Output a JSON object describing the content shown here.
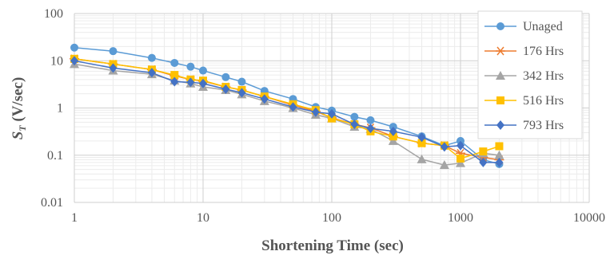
{
  "chart_data": {
    "type": "line",
    "title": "",
    "xlabel": "Shortening Time (sec)",
    "ylabel_main": "S",
    "ylabel_sub": "T",
    "ylabel_rest": " (V/sec)",
    "x_scale": "log",
    "y_scale": "log",
    "xlim": [
      1,
      10000
    ],
    "ylim": [
      0.01,
      100
    ],
    "x_ticks": [
      1,
      10,
      100,
      1000,
      10000
    ],
    "x_tick_labels": [
      "1",
      "10",
      "100",
      "1000",
      "10000"
    ],
    "y_ticks": [
      0.01,
      0.1,
      1,
      10,
      100
    ],
    "y_tick_labels": [
      "0.01",
      "0.1",
      "1",
      "10",
      "100"
    ],
    "grid": "major and minor",
    "legend_position": "right",
    "series": [
      {
        "name": "Unaged",
        "color": "#5b9bd5",
        "marker": "circle",
        "x": [
          1,
          2,
          4,
          6,
          8,
          10,
          15,
          20,
          30,
          50,
          75,
          100,
          150,
          200,
          300,
          500,
          750,
          1000,
          1500,
          2000
        ],
        "y": [
          19,
          16,
          11.5,
          9,
          7.5,
          6.2,
          4.5,
          3.6,
          2.3,
          1.55,
          1.05,
          0.88,
          0.65,
          0.55,
          0.4,
          0.25,
          0.16,
          0.2,
          0.08,
          0.065
        ]
      },
      {
        "name": "176 Hrs",
        "color": "#ed7d31",
        "marker": "star",
        "x": [
          1,
          2,
          4,
          6,
          8,
          10,
          15,
          20,
          30,
          50,
          75,
          100,
          150,
          200,
          300,
          500,
          750,
          1000,
          1500,
          2000
        ],
        "y": [
          11,
          8.5,
          6.5,
          4.8,
          4,
          3.7,
          2.8,
          2.4,
          1.75,
          1.15,
          0.85,
          0.62,
          0.45,
          0.38,
          0.25,
          0.18,
          0.16,
          0.11,
          0.09,
          0.08
        ]
      },
      {
        "name": "342 Hrs",
        "color": "#a5a5a5",
        "marker": "triangle",
        "x": [
          1,
          2,
          4,
          6,
          8,
          10,
          15,
          20,
          30,
          50,
          75,
          100,
          150,
          200,
          300,
          500,
          750,
          1000,
          1500,
          2000
        ],
        "y": [
          8.5,
          6.2,
          5.2,
          3.8,
          3.3,
          2.8,
          2.4,
          1.95,
          1.4,
          1.0,
          0.72,
          0.6,
          0.4,
          0.36,
          0.2,
          0.082,
          0.062,
          0.068,
          0.11,
          0.1
        ]
      },
      {
        "name": "516 Hrs",
        "color": "#ffc000",
        "marker": "square",
        "x": [
          1,
          2,
          4,
          6,
          8,
          10,
          15,
          20,
          30,
          50,
          75,
          100,
          150,
          200,
          300,
          500,
          750,
          1000,
          1500,
          2000
        ],
        "y": [
          11,
          8.5,
          6.5,
          5,
          4,
          3.8,
          2.8,
          2.4,
          1.75,
          1.2,
          0.9,
          0.6,
          0.45,
          0.32,
          0.25,
          0.18,
          0.16,
          0.085,
          0.12,
          0.155
        ]
      },
      {
        "name": "793 Hrs",
        "color": "#4472c4",
        "marker": "diamond",
        "x": [
          1,
          2,
          4,
          6,
          8,
          10,
          15,
          20,
          30,
          50,
          75,
          100,
          150,
          200,
          300,
          500,
          750,
          1000,
          1500,
          2000
        ],
        "y": [
          10,
          7,
          5.6,
          3.6,
          3.5,
          3.3,
          2.5,
          2.1,
          1.55,
          1.05,
          0.82,
          0.75,
          0.45,
          0.37,
          0.32,
          0.24,
          0.15,
          0.16,
          0.07,
          0.07
        ]
      }
    ]
  }
}
